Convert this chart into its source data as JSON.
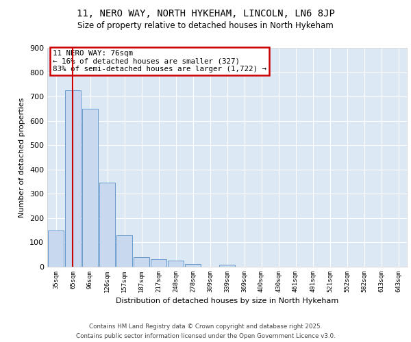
{
  "title1": "11, NERO WAY, NORTH HYKEHAM, LINCOLN, LN6 8JP",
  "title2": "Size of property relative to detached houses in North Hykeham",
  "xlabel": "Distribution of detached houses by size in North Hykeham",
  "ylabel": "Number of detached properties",
  "categories": [
    "35sqm",
    "65sqm",
    "96sqm",
    "126sqm",
    "157sqm",
    "187sqm",
    "217sqm",
    "248sqm",
    "278sqm",
    "309sqm",
    "339sqm",
    "369sqm",
    "400sqm",
    "430sqm",
    "461sqm",
    "491sqm",
    "521sqm",
    "552sqm",
    "582sqm",
    "613sqm",
    "643sqm"
  ],
  "values": [
    150,
    725,
    650,
    345,
    130,
    40,
    30,
    25,
    10,
    0,
    8,
    0,
    0,
    0,
    0,
    0,
    0,
    0,
    0,
    0,
    0
  ],
  "bar_color": "#c8d9ef",
  "bar_edge_color": "#6699cc",
  "vline_x_index": 1,
  "vline_color": "#cc0000",
  "annotation_text": "11 NERO WAY: 76sqm\n← 16% of detached houses are smaller (327)\n83% of semi-detached houses are larger (1,722) →",
  "annotation_box_color": "#ffffff",
  "annotation_box_edge": "#cc0000",
  "ylim": [
    0,
    900
  ],
  "yticks": [
    0,
    100,
    200,
    300,
    400,
    500,
    600,
    700,
    800,
    900
  ],
  "background_color": "#ffffff",
  "plot_bg_color": "#dde8f5",
  "grid_color": "#ffffff",
  "footer1": "Contains HM Land Registry data © Crown copyright and database right 2025.",
  "footer2": "Contains public sector information licensed under the Open Government Licence v3.0."
}
